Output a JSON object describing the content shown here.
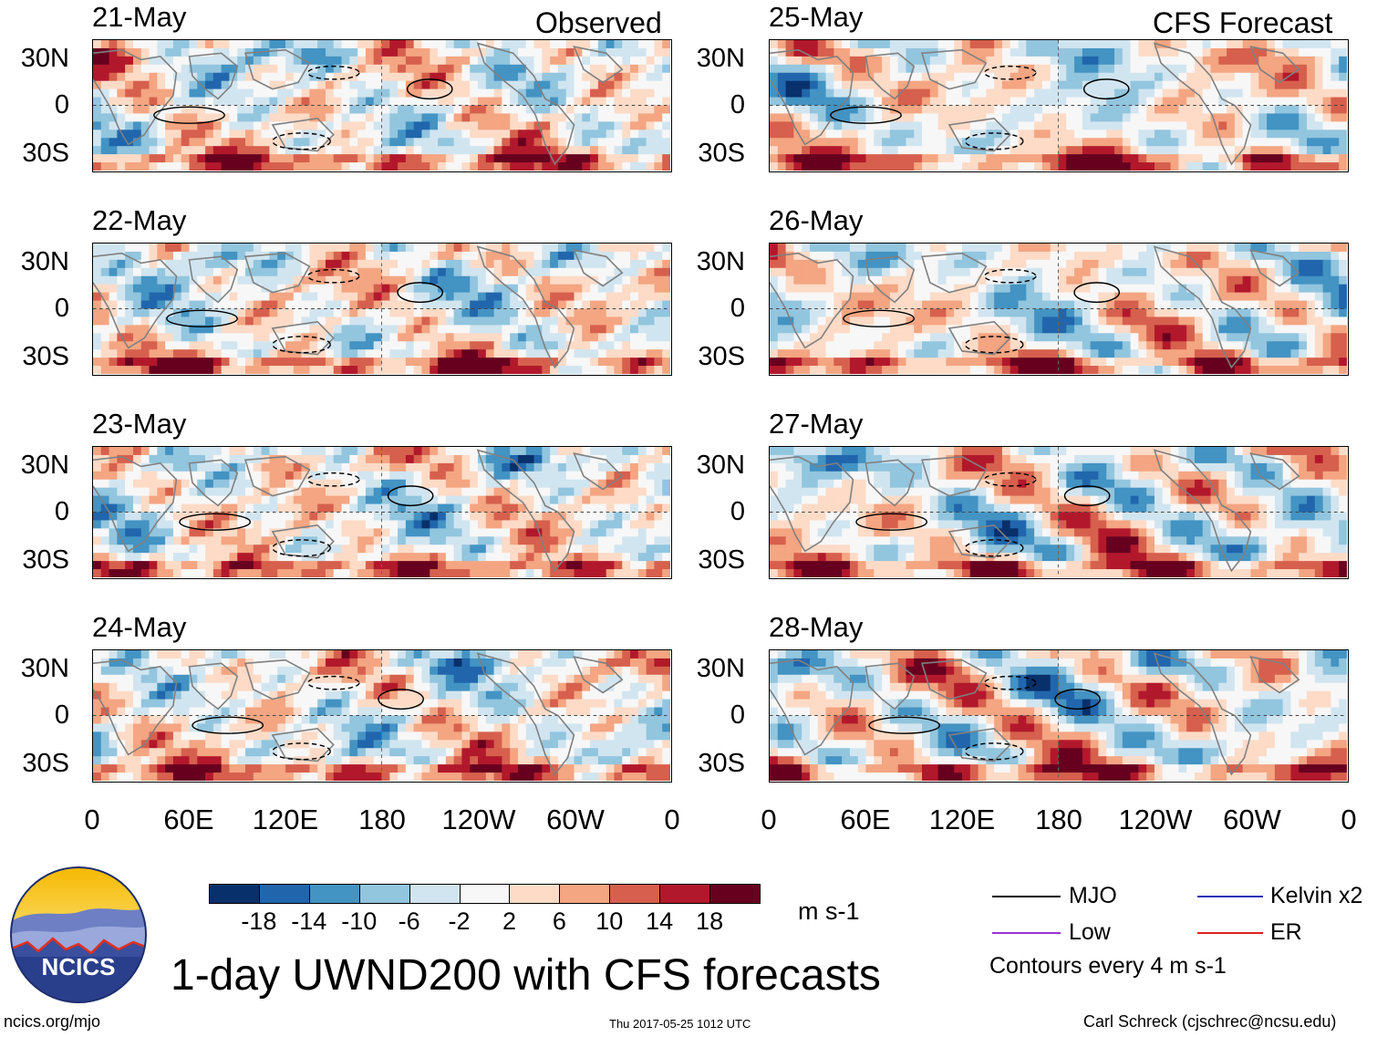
{
  "chart_data": {
    "type": "heatmap",
    "title": "1-day UWND200 with CFS forecasts",
    "variable": "UWND200",
    "units": "m s-1",
    "columns": [
      {
        "header": "Observed",
        "dates": [
          "21-May",
          "22-May",
          "23-May",
          "24-May"
        ]
      },
      {
        "header": "CFS Forecast",
        "dates": [
          "25-May",
          "26-May",
          "27-May",
          "28-May"
        ]
      }
    ],
    "y_ticks": [
      "30N",
      "0",
      "30S"
    ],
    "y_range_deg": [
      -40,
      40
    ],
    "x_ticks": [
      "0",
      "60E",
      "120E",
      "180",
      "120W",
      "60W",
      "0"
    ],
    "x_range_deg_east": [
      0,
      360
    ],
    "colorbar": {
      "levels": [
        "-18",
        "-14",
        "-10",
        "-6",
        "-2",
        "2",
        "6",
        "10",
        "14",
        "18"
      ],
      "colors": [
        "#08306b",
        "#2166ac",
        "#4393c3",
        "#92c5de",
        "#d1e5f0",
        "#f7f7f7",
        "#fddbc7",
        "#f4a582",
        "#d6604d",
        "#b2182b",
        "#67001f"
      ],
      "units": "m s-1"
    },
    "legend": [
      {
        "label": "MJO",
        "color": "#000000"
      },
      {
        "label": "Kelvin x2",
        "color": "#2233bb"
      },
      {
        "label": "Low",
        "color": "#9933cc"
      },
      {
        "label": "ER",
        "color": "#dd2222"
      }
    ],
    "contour_note": "Contours every 4 m s-1"
  },
  "footer": {
    "url": "ncics.org/mjo",
    "timestamp": "Thu 2017-05-25 1012 UTC",
    "credit": "Carl Schreck (cjschrec@ncsu.edu)"
  },
  "logo": {
    "text": "NCICS"
  }
}
